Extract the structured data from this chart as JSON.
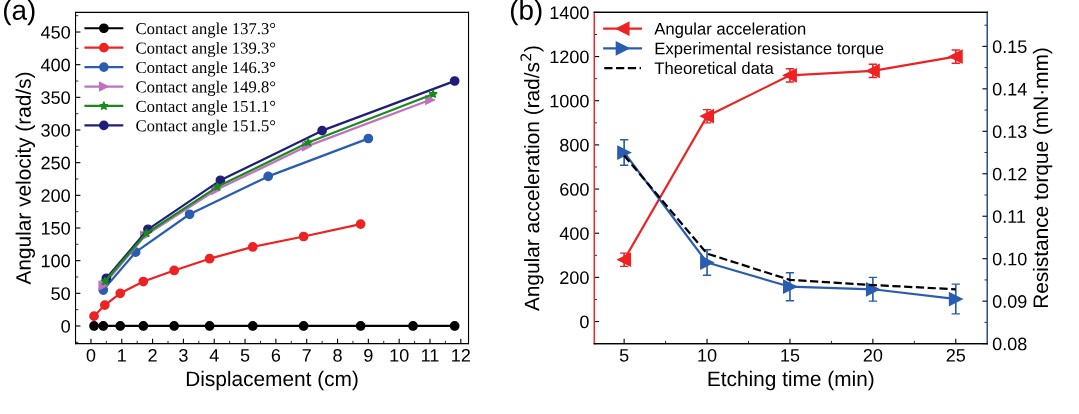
{
  "chart_data": [
    {
      "type": "line",
      "annotations": [
        "(a)"
      ],
      "xlabel": "Displacement (cm)",
      "ylabel": "Angular velocity (rad/s)",
      "xlim": [
        -0.5,
        12.25
      ],
      "xticks": [
        0,
        1,
        2,
        3,
        4,
        5,
        6,
        7,
        8,
        9,
        10,
        11,
        12
      ],
      "ylim": [
        -27,
        480
      ],
      "yticks": [
        0,
        50,
        100,
        150,
        200,
        250,
        300,
        350,
        400,
        450
      ],
      "grid": false,
      "legend": "top left",
      "line_style": "solid",
      "series": [
        {
          "name": "Contact angle 137.3°",
          "color": "#000000",
          "marker": "circle",
          "x": [
            0.1,
            0.4,
            0.95,
            1.7,
            2.7,
            3.85,
            5.25,
            6.9,
            8.75,
            10.45,
            11.8
          ],
          "values": [
            0,
            0,
            0,
            0,
            0,
            0,
            0,
            0,
            0,
            0,
            0
          ]
        },
        {
          "name": "Contact angle 139.3°",
          "color": "#ee2222",
          "marker": "circle",
          "x": [
            0.1,
            0.45,
            0.95,
            1.7,
            2.7,
            3.85,
            5.25,
            6.9,
            8.75
          ],
          "values": [
            15,
            32,
            50,
            68,
            85,
            103,
            121,
            137,
            156
          ]
        },
        {
          "name": "Contact angle 146.3°",
          "color": "#2a5db0",
          "marker": "circle",
          "x": [
            0.4,
            1.45,
            3.2,
            5.75,
            9.0
          ],
          "values": [
            55,
            113,
            171,
            229,
            287
          ]
        },
        {
          "name": "Contact angle 149.8°",
          "color": "#c070c0",
          "marker": "triangle",
          "x": [
            0.4,
            1.75,
            4.05,
            7.0,
            11.0
          ],
          "values": [
            62,
            138,
            208,
            275,
            346
          ]
        },
        {
          "name": "Contact angle 151.1°",
          "color": "#1a8a1a",
          "marker": "star",
          "x": [
            0.45,
            1.8,
            4.1,
            7.05,
            11.1
          ],
          "values": [
            68,
            142,
            213,
            281,
            355
          ]
        },
        {
          "name": "Contact angle 151.5°",
          "color": "#1f1f7a",
          "marker": "circle",
          "x": [
            0.5,
            1.85,
            4.2,
            7.5,
            11.8
          ],
          "values": [
            73,
            148,
            223,
            299,
            375
          ]
        }
      ]
    },
    {
      "type": "line",
      "annotations": [
        "(b)"
      ],
      "xlabel": "Etching time (min)",
      "ylabel": "Angular acceleration (rad/s$^{2}$)",
      "y2label": "Resistance torque (mN·mm)",
      "xlim": [
        3.2,
        26.9
      ],
      "xticks": [
        5,
        10,
        15,
        20,
        25
      ],
      "ylim": [
        -100,
        1400
      ],
      "yticks": [
        0,
        200,
        400,
        600,
        800,
        1000,
        1200,
        1400
      ],
      "y2lim": [
        0.08,
        0.158
      ],
      "y2ticks": [
        {
          "value": 0.08,
          "label": "0.08"
        },
        {
          "value": 0.09,
          "label": "0.09"
        },
        {
          "value": 0.1,
          "label": "0.10"
        },
        {
          "value": 0.11,
          "label": "0.11"
        },
        {
          "value": 0.12,
          "label": "0.12"
        },
        {
          "value": 0.13,
          "label": "0.13"
        },
        {
          "value": 0.14,
          "label": "0.14"
        },
        {
          "value": 0.15,
          "label": "0.15"
        }
      ],
      "grid": false,
      "legend": "top left",
      "x": [
        5,
        10,
        15,
        20,
        25
      ],
      "series": [
        {
          "name": "Angular acceleration",
          "color": "#ee2222",
          "marker": "triangle_left",
          "line_style": "solid",
          "values": [
            280,
            930,
            1115,
            1135,
            1200
          ],
          "errors": [
            30,
            30,
            30,
            30,
            30
          ]
        },
        {
          "name": "Experimental resistance torque",
          "color": "#2a5db0",
          "marker": "triangle",
          "line_style": "solid",
          "axis": "y2",
          "values": [
            0.125,
            0.0991,
            0.0934,
            0.0928,
            0.0905
          ],
          "errors": [
            0.003,
            0.003,
            0.0033,
            0.0028,
            0.0035
          ]
        },
        {
          "name": "Theoretical data",
          "color": "#000000",
          "marker": "none",
          "line_style": "dashed",
          "axis": "y2",
          "values": [
            0.1243,
            0.1012,
            0.095,
            0.0938,
            0.0928
          ]
        }
      ]
    }
  ]
}
